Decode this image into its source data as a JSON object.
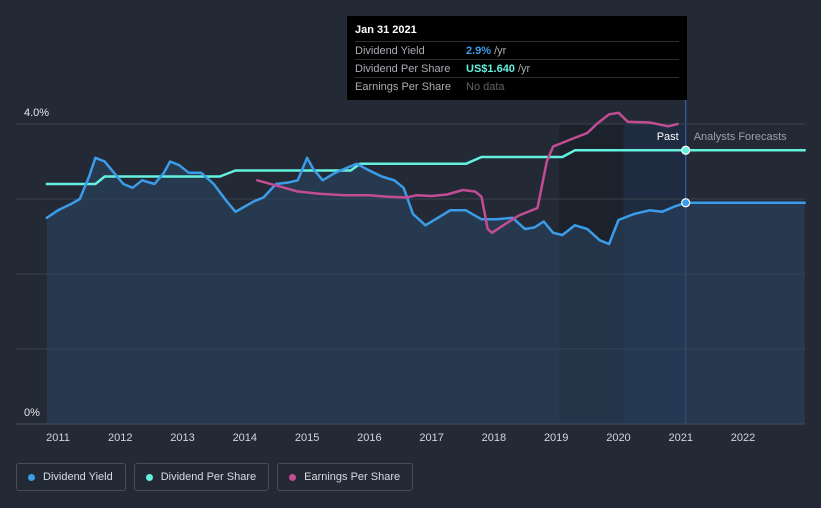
{
  "chart_data": {
    "type": "line",
    "x_range": [
      2010.8,
      2022.99
    ],
    "ylim": [
      0,
      4.0
    ],
    "y_ticks_labeled": [
      "0%",
      "4.0%"
    ],
    "x_ticks": [
      "2011",
      "2012",
      "2013",
      "2014",
      "2015",
      "2016",
      "2017",
      "2018",
      "2019",
      "2020",
      "2021",
      "2022"
    ],
    "past_label": "Past",
    "forecast_label": "Analysts Forecasts",
    "tooltip": {
      "date": "Jan 31 2021",
      "rows": [
        {
          "label": "Dividend Yield",
          "value": "2.9%",
          "unit": "/yr"
        },
        {
          "label": "Dividend Per Share",
          "value": "US$1.640",
          "unit": "/yr"
        },
        {
          "label": "Earnings Per Share",
          "value": "No data",
          "unit": ""
        }
      ]
    },
    "series": [
      {
        "name": "Dividend Yield",
        "color": "#3b9de9",
        "points": [
          [
            2010.82,
            2.75
          ],
          [
            2011.0,
            2.85
          ],
          [
            2011.2,
            2.93
          ],
          [
            2011.35,
            3.0
          ],
          [
            2011.5,
            3.3
          ],
          [
            2011.6,
            3.55
          ],
          [
            2011.75,
            3.5
          ],
          [
            2011.9,
            3.35
          ],
          [
            2012.05,
            3.2
          ],
          [
            2012.2,
            3.15
          ],
          [
            2012.35,
            3.25
          ],
          [
            2012.55,
            3.2
          ],
          [
            2012.7,
            3.35
          ],
          [
            2012.8,
            3.5
          ],
          [
            2012.95,
            3.45
          ],
          [
            2013.1,
            3.35
          ],
          [
            2013.3,
            3.35
          ],
          [
            2013.5,
            3.2
          ],
          [
            2013.7,
            2.98
          ],
          [
            2013.85,
            2.83
          ],
          [
            2014.0,
            2.9
          ],
          [
            2014.15,
            2.97
          ],
          [
            2014.3,
            3.02
          ],
          [
            2014.5,
            3.2
          ],
          [
            2014.7,
            3.22
          ],
          [
            2014.85,
            3.25
          ],
          [
            2015.0,
            3.55
          ],
          [
            2015.1,
            3.4
          ],
          [
            2015.25,
            3.25
          ],
          [
            2015.45,
            3.35
          ],
          [
            2015.65,
            3.42
          ],
          [
            2015.8,
            3.47
          ],
          [
            2015.95,
            3.4
          ],
          [
            2016.2,
            3.3
          ],
          [
            2016.4,
            3.25
          ],
          [
            2016.55,
            3.15
          ],
          [
            2016.7,
            2.8
          ],
          [
            2016.9,
            2.65
          ],
          [
            2017.1,
            2.75
          ],
          [
            2017.3,
            2.85
          ],
          [
            2017.55,
            2.85
          ],
          [
            2017.8,
            2.73
          ],
          [
            2018.05,
            2.73
          ],
          [
            2018.3,
            2.75
          ],
          [
            2018.5,
            2.6
          ],
          [
            2018.65,
            2.62
          ],
          [
            2018.8,
            2.7
          ],
          [
            2018.95,
            2.55
          ],
          [
            2019.1,
            2.52
          ],
          [
            2019.3,
            2.65
          ],
          [
            2019.5,
            2.6
          ],
          [
            2019.7,
            2.45
          ],
          [
            2019.85,
            2.4
          ],
          [
            2020.0,
            2.72
          ],
          [
            2020.25,
            2.8
          ],
          [
            2020.5,
            2.85
          ],
          [
            2020.7,
            2.83
          ],
          [
            2020.9,
            2.9
          ],
          [
            2021.08,
            2.95
          ],
          [
            2022.99,
            2.95
          ]
        ]
      },
      {
        "name": "Dividend Per Share",
        "color": "#65f1df",
        "points": [
          [
            2010.82,
            3.2
          ],
          [
            2011.6,
            3.2
          ],
          [
            2011.75,
            3.3
          ],
          [
            2013.6,
            3.3
          ],
          [
            2013.85,
            3.38
          ],
          [
            2015.7,
            3.38
          ],
          [
            2015.85,
            3.47
          ],
          [
            2017.55,
            3.47
          ],
          [
            2017.8,
            3.56
          ],
          [
            2019.1,
            3.56
          ],
          [
            2019.3,
            3.65
          ],
          [
            2022.99,
            3.65
          ]
        ]
      },
      {
        "name": "Earnings Per Share",
        "color": "#c24d95",
        "points": [
          [
            2014.2,
            3.25
          ],
          [
            2014.55,
            3.17
          ],
          [
            2014.85,
            3.1
          ],
          [
            2015.2,
            3.07
          ],
          [
            2015.6,
            3.05
          ],
          [
            2016.0,
            3.05
          ],
          [
            2016.3,
            3.03
          ],
          [
            2016.6,
            3.02
          ],
          [
            2016.75,
            3.05
          ],
          [
            2017.0,
            3.04
          ],
          [
            2017.25,
            3.06
          ],
          [
            2017.5,
            3.12
          ],
          [
            2017.7,
            3.1
          ],
          [
            2017.8,
            3.03
          ],
          [
            2017.9,
            2.6
          ],
          [
            2017.97,
            2.55
          ],
          [
            2018.15,
            2.65
          ],
          [
            2018.4,
            2.78
          ],
          [
            2018.7,
            2.88
          ],
          [
            2018.85,
            3.5
          ],
          [
            2018.95,
            3.7
          ],
          [
            2019.25,
            3.8
          ],
          [
            2019.5,
            3.88
          ],
          [
            2019.65,
            4.0
          ],
          [
            2019.85,
            4.13
          ],
          [
            2020.0,
            4.15
          ],
          [
            2020.15,
            4.03
          ],
          [
            2020.5,
            4.02
          ],
          [
            2020.8,
            3.97
          ],
          [
            2020.95,
            4.0
          ]
        ]
      }
    ]
  },
  "legend": {
    "items": [
      {
        "label": "Dividend Yield",
        "color": "#3b9de9"
      },
      {
        "label": "Dividend Per Share",
        "color": "#65f1df"
      },
      {
        "label": "Earnings Per Share",
        "color": "#c24d95"
      }
    ]
  }
}
